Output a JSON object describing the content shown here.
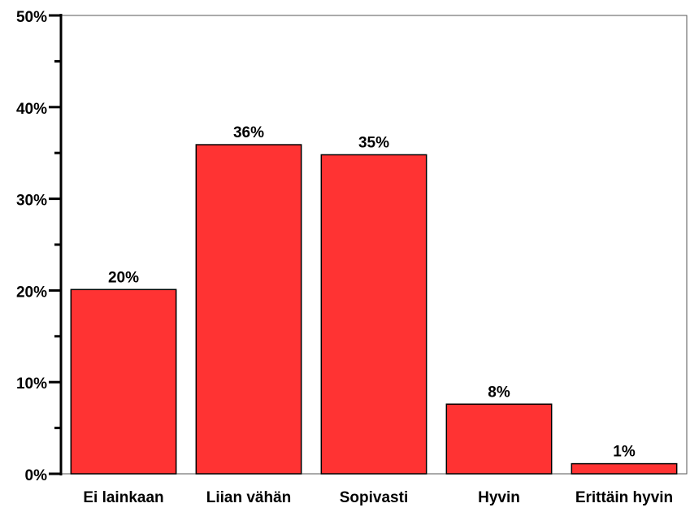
{
  "chart_data": {
    "type": "bar",
    "categories": [
      "Ei lainkaan",
      "Liian vähän",
      "Sopivasti",
      "Hyvin",
      "Erittäin hyvin"
    ],
    "values": [
      20.1,
      35.9,
      34.8,
      7.6,
      1.1
    ],
    "value_labels": [
      "20%",
      "36%",
      "35%",
      "8%",
      "1%"
    ],
    "color": "#ff3333",
    "ylim": [
      0,
      50
    ],
    "yticks": [
      {
        "value": 0,
        "label": "0%"
      },
      {
        "value": 10,
        "label": "10%"
      },
      {
        "value": 20,
        "label": "20%"
      },
      {
        "value": 30,
        "label": "30%"
      },
      {
        "value": 40,
        "label": "40%"
      },
      {
        "value": 50,
        "label": "50%"
      }
    ],
    "minor_yticks": [
      5,
      15,
      25,
      35,
      45
    ],
    "grid": false
  }
}
